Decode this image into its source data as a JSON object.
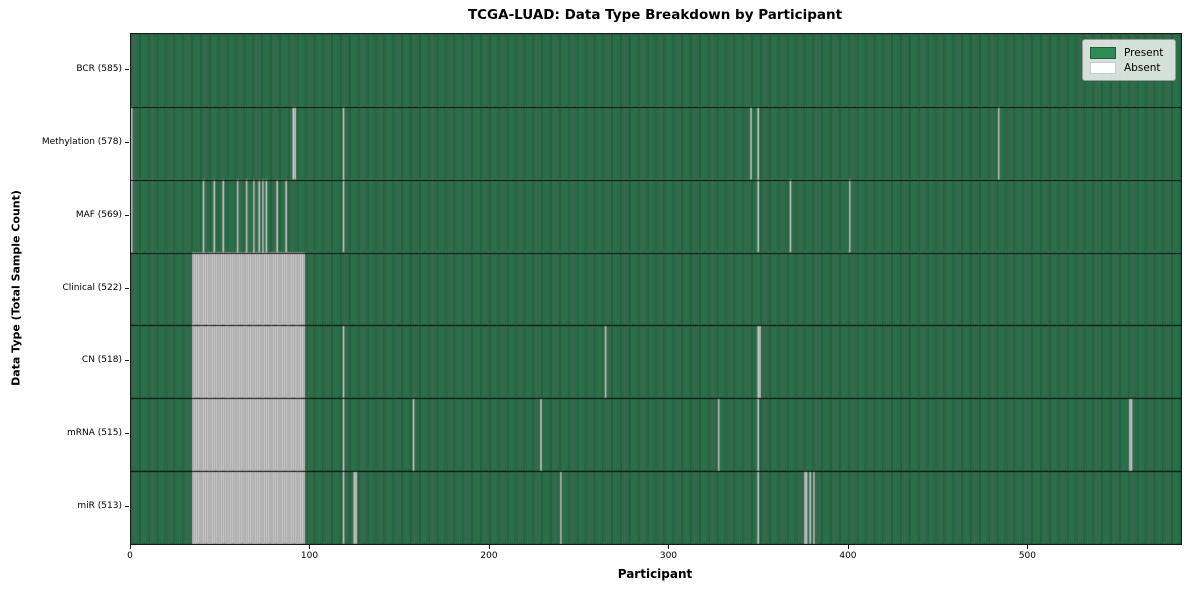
{
  "chart_data": {
    "type": "heatmap",
    "title": "TCGA-LUAD: Data Type Breakdown by Participant",
    "xlabel": "Participant",
    "ylabel": "Data Type (Total Sample Count)",
    "x_ticks": [
      0,
      100,
      200,
      300,
      400,
      500
    ],
    "xlim": [
      0,
      585
    ],
    "n_participants": 585,
    "grid": false,
    "cell_states": [
      "Present",
      "Absent"
    ],
    "legend": {
      "position": "upper right",
      "entries": [
        {
          "label": "Present",
          "color": "#2e8b57"
        },
        {
          "label": "Absent",
          "color": "#ffffff"
        }
      ]
    },
    "colors": {
      "present": "#2e8b57",
      "absent": "#ffffff",
      "bar_edge": "rgba(0,0,0,0.5)",
      "row_divider": "rgba(0,0,0,0.85)",
      "plot_border": "#1a1a1a"
    },
    "rows": [
      {
        "label": "BCR (585)",
        "data_type": "BCR",
        "total": 585,
        "absent_ranges": [],
        "absent_participants": []
      },
      {
        "label": "Methylation (578)",
        "data_type": "Methylation",
        "total": 578,
        "absent_ranges": [],
        "absent_participants": [
          0,
          90,
          91,
          118,
          345,
          349,
          483
        ]
      },
      {
        "label": "MAF (569)",
        "data_type": "MAF",
        "total": 569,
        "absent_ranges": [],
        "absent_participants": [
          0,
          40,
          46,
          51,
          59,
          64,
          68,
          71,
          73,
          75,
          81,
          86,
          118,
          349,
          367,
          400
        ]
      },
      {
        "label": "Clinical (522)",
        "data_type": "Clinical",
        "total": 522,
        "absent_ranges": [
          [
            34,
            96
          ]
        ],
        "absent_participants": []
      },
      {
        "label": "CN (518)",
        "data_type": "CN",
        "total": 518,
        "absent_ranges": [
          [
            34,
            96
          ]
        ],
        "absent_participants": [
          118,
          264,
          349,
          350
        ]
      },
      {
        "label": "mRNA (515)",
        "data_type": "mRNA",
        "total": 515,
        "absent_ranges": [
          [
            34,
            96
          ]
        ],
        "absent_participants": [
          118,
          157,
          228,
          327,
          349,
          556,
          557
        ]
      },
      {
        "label": "miR (513)",
        "data_type": "miR",
        "total": 513,
        "absent_ranges": [
          [
            34,
            96
          ]
        ],
        "absent_participants": [
          118,
          124,
          125,
          239,
          349,
          375,
          376,
          378,
          380
        ]
      }
    ]
  }
}
